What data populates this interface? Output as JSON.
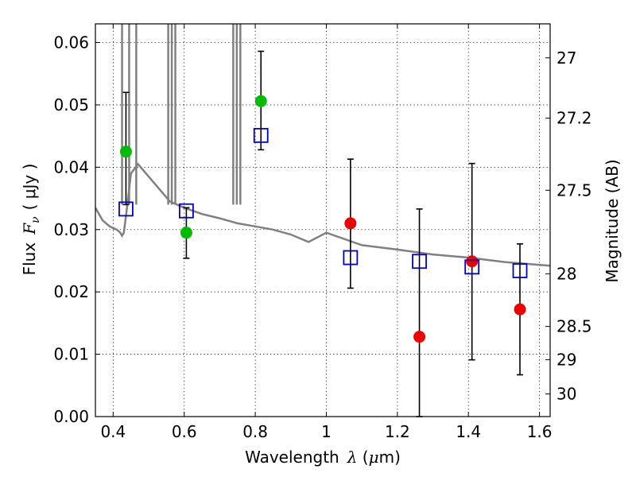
{
  "chart_data": {
    "type": "scatter",
    "xlabel_main": "Wavelength",
    "xlabel_var": "λ",
    "xlabel_unit_open": " (",
    "xlabel_unit_mu": "μ",
    "xlabel_unit_close": "m)",
    "ylabel_main": "Flux",
    "ylabel_var": "F",
    "ylabel_sub": "ν",
    "ylabel_unit": "( μJy )",
    "y2label": "Magnitude (AB)",
    "xlim": [
      0.35,
      1.63
    ],
    "ylim": [
      0.0,
      0.063
    ],
    "xticks": [
      {
        "value": 0.4,
        "label": "0.4"
      },
      {
        "value": 0.6,
        "label": "0.6"
      },
      {
        "value": 0.8,
        "label": "0.8"
      },
      {
        "value": 1.0,
        "label": "1"
      },
      {
        "value": 1.2,
        "label": "1.2"
      },
      {
        "value": 1.4,
        "label": "1.4"
      },
      {
        "value": 1.6,
        "label": "1.6"
      }
    ],
    "yticks": [
      {
        "value": 0.0,
        "label": "0.00"
      },
      {
        "value": 0.01,
        "label": "0.01"
      },
      {
        "value": 0.02,
        "label": "0.02"
      },
      {
        "value": 0.03,
        "label": "0.03"
      },
      {
        "value": 0.04,
        "label": "0.04"
      },
      {
        "value": 0.05,
        "label": "0.05"
      },
      {
        "value": 0.06,
        "label": "0.06"
      }
    ],
    "y2ticks": [
      {
        "magnitude": 27,
        "label": "27"
      },
      {
        "magnitude": 27.2,
        "label": "27.2"
      },
      {
        "magnitude": 27.5,
        "label": "27.5"
      },
      {
        "magnitude": 28,
        "label": "28"
      },
      {
        "magnitude": 28.5,
        "label": "28.5"
      },
      {
        "magnitude": 29,
        "label": "29"
      },
      {
        "magnitude": 30,
        "label": "30"
      }
    ],
    "series": [
      {
        "name": "model-spectrum",
        "kind": "line",
        "color": "#808080",
        "x": [
          0.35,
          0.37,
          0.39,
          0.41,
          0.42,
          0.425,
          0.43,
          0.44,
          0.45,
          0.47,
          0.5,
          0.53,
          0.56,
          0.6,
          0.65,
          0.7,
          0.75,
          0.8,
          0.85,
          0.9,
          0.95,
          1.0,
          1.05,
          1.1,
          1.2,
          1.3,
          1.4,
          1.5,
          1.63
        ],
        "y": [
          0.0335,
          0.0315,
          0.0305,
          0.03,
          0.0295,
          0.029,
          0.0295,
          0.034,
          0.039,
          0.0405,
          0.0385,
          0.0365,
          0.0345,
          0.0335,
          0.0325,
          0.0318,
          0.031,
          0.0305,
          0.03,
          0.0292,
          0.028,
          0.0295,
          0.0285,
          0.0275,
          0.0268,
          0.026,
          0.0255,
          0.0248,
          0.0242
        ],
        "spikes": [
          0.425,
          0.445,
          0.465,
          0.555,
          0.565,
          0.575,
          0.738,
          0.748,
          0.758
        ]
      },
      {
        "name": "green-detections",
        "kind": "points",
        "color": "#00bb00",
        "x": [
          0.436,
          0.606,
          0.816
        ],
        "y": [
          0.0425,
          0.0295,
          0.0506
        ],
        "errlow": [
          0.034,
          0.0254,
          0.0428
        ],
        "errhigh": [
          0.052,
          0.0335,
          0.0586
        ]
      },
      {
        "name": "red-detections",
        "kind": "points",
        "color": "#ee0000",
        "x": [
          1.068,
          1.262,
          1.41,
          1.545
        ],
        "y": [
          0.031,
          0.0128,
          0.0249,
          0.0172
        ],
        "errlow": [
          0.0206,
          0.0,
          0.0091,
          0.0067
        ],
        "errhigh": [
          0.0413,
          0.0333,
          0.0406,
          0.0277
        ]
      },
      {
        "name": "model-bandpass-flux",
        "kind": "open-squares",
        "color": "#0000cc",
        "x": [
          0.436,
          0.606,
          0.816,
          1.068,
          1.262,
          1.41,
          1.545
        ],
        "y": [
          0.0333,
          0.033,
          0.0451,
          0.0255,
          0.0249,
          0.024,
          0.0234
        ]
      }
    ]
  }
}
